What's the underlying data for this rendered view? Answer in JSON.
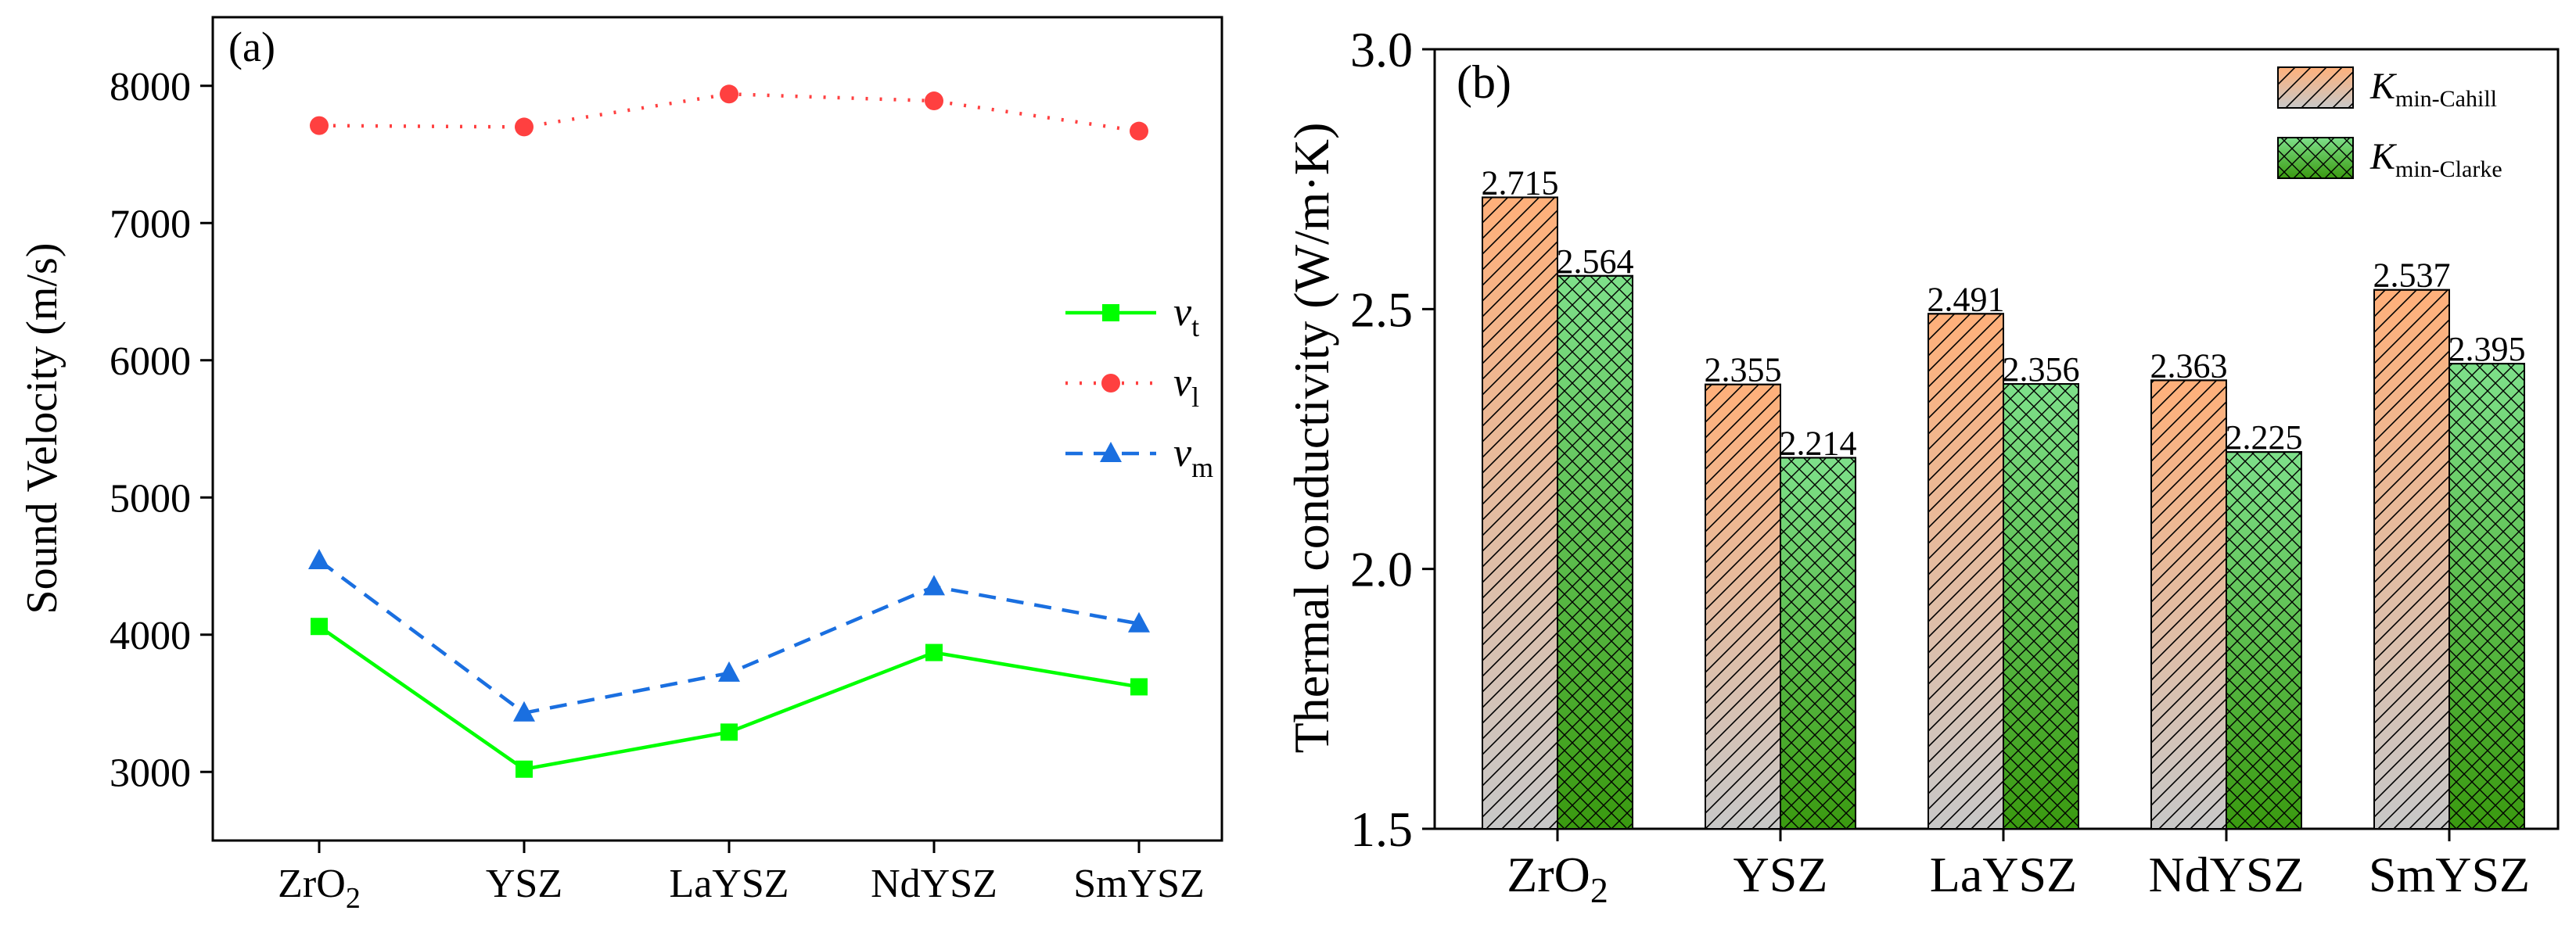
{
  "colors": {
    "vt": "#00ff00",
    "vl": "#ff4040",
    "vm": "#1a6fe0",
    "cahill_top": "#ffb07a",
    "cahill_bottom": "#c8c8c8",
    "clarke_top": "#7ee08a",
    "clarke_bottom": "#3a9a10"
  },
  "chart_data": [
    {
      "panel": "(a)",
      "type": "line",
      "categories": [
        "ZrO2",
        "YSZ",
        "LaYSZ",
        "NdYSZ",
        "SmYSZ"
      ],
      "ylabel": "Sound Velocity (m/s)",
      "xlabel": "",
      "ylim": [
        2500,
        8500
      ],
      "yticks": [
        3000,
        4000,
        5000,
        6000,
        7000,
        8000
      ],
      "legend_position": "right-middle",
      "series": [
        {
          "key": "vt",
          "symbol": "v",
          "sub": "t",
          "marker": "square",
          "linestyle": "solid",
          "values": [
            4060,
            3020,
            3290,
            3870,
            3620
          ]
        },
        {
          "key": "vl",
          "symbol": "v",
          "sub": "l",
          "marker": "circle",
          "linestyle": "dotted",
          "values": [
            7710,
            7700,
            7940,
            7890,
            7670
          ]
        },
        {
          "key": "vm",
          "symbol": "v",
          "sub": "m",
          "marker": "triangle",
          "linestyle": "dashed",
          "values": [
            4540,
            3430,
            3720,
            4350,
            4080
          ]
        }
      ]
    },
    {
      "panel": "(b)",
      "type": "bar",
      "categories": [
        "ZrO2",
        "YSZ",
        "LaYSZ",
        "NdYSZ",
        "SmYSZ"
      ],
      "ylabel": "Thermal conductivity (W/m·K)",
      "xlabel": "",
      "ylim": [
        1.5,
        3.0
      ],
      "yticks": [
        "1.5",
        "2.0",
        "2.5",
        "3.0"
      ],
      "legend_position": "top-right",
      "series": [
        {
          "key": "cahill",
          "symbol": "K",
          "sub": "min-Cahill",
          "values": [
            2.715,
            2.355,
            2.491,
            2.363,
            2.537
          ],
          "labels": [
            "2.715",
            "2.355",
            "2.491",
            "2.363",
            "2.537"
          ]
        },
        {
          "key": "clarke",
          "symbol": "K",
          "sub": "min-Clarke",
          "values": [
            2.564,
            2.214,
            2.356,
            2.225,
            2.395
          ],
          "labels": [
            "2.564",
            "2.214",
            "2.356",
            "2.225",
            "2.395"
          ]
        }
      ]
    }
  ]
}
